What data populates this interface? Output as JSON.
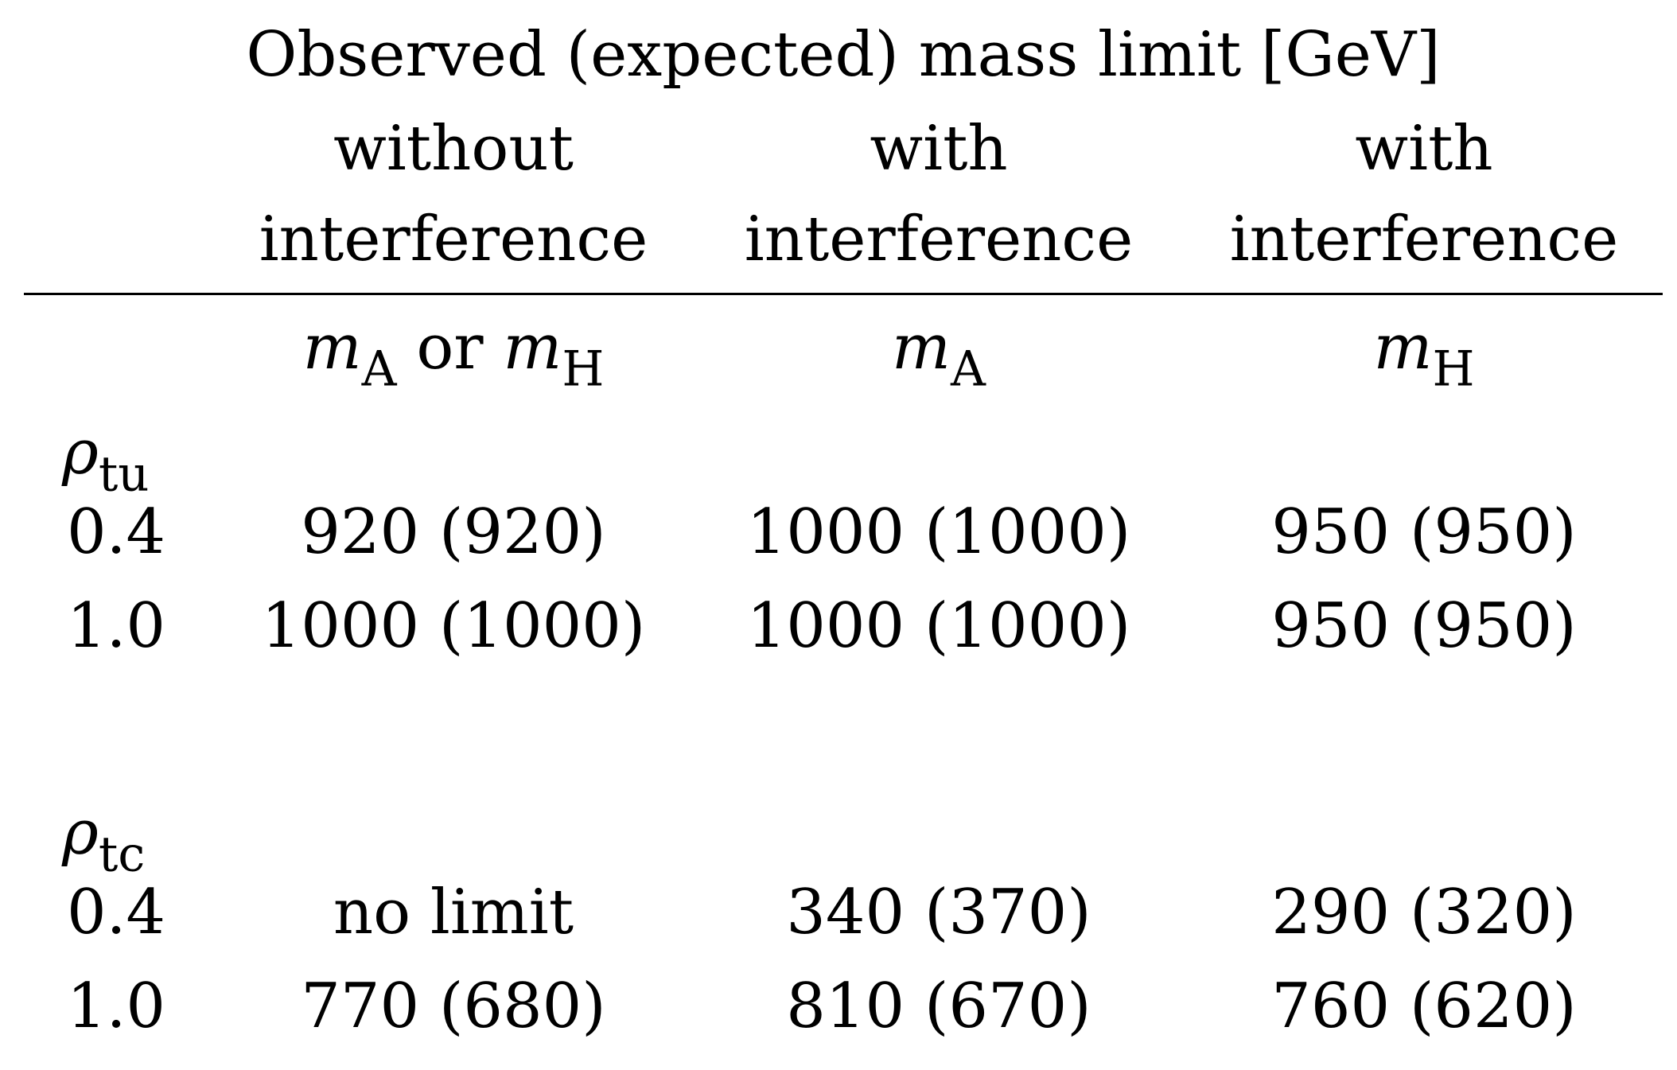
{
  "table": {
    "title": "Observed (expected) mass limit [GeV]",
    "columns": [
      {
        "line1": "without",
        "line2": "interference",
        "mass_var": "m",
        "mass_sub": "A",
        "mass_join": " or ",
        "mass_var2": "m",
        "mass_sub2": "H"
      },
      {
        "line1": "with",
        "line2": "interference",
        "mass_var": "m",
        "mass_sub": "A"
      },
      {
        "line1": "with",
        "line2": "interference",
        "mass_var": "m",
        "mass_sub": "H"
      }
    ],
    "groups": [
      {
        "param": "ρ",
        "param_sub": "tu",
        "rows": [
          {
            "value": "0.4",
            "cells": [
              "920 (920)",
              "1000 (1000)",
              "950 (950)"
            ]
          },
          {
            "value": "1.0",
            "cells": [
              "1000 (1000)",
              "1000 (1000)",
              "950 (950)"
            ]
          }
        ]
      },
      {
        "param": "ρ",
        "param_sub": "tc",
        "rows": [
          {
            "value": "0.4",
            "cells": [
              "no limit",
              "340 (370)",
              "290 (320)"
            ]
          },
          {
            "value": "1.0",
            "cells": [
              "770 (680)",
              "810 (670)",
              "760 (620)"
            ]
          }
        ]
      }
    ]
  }
}
